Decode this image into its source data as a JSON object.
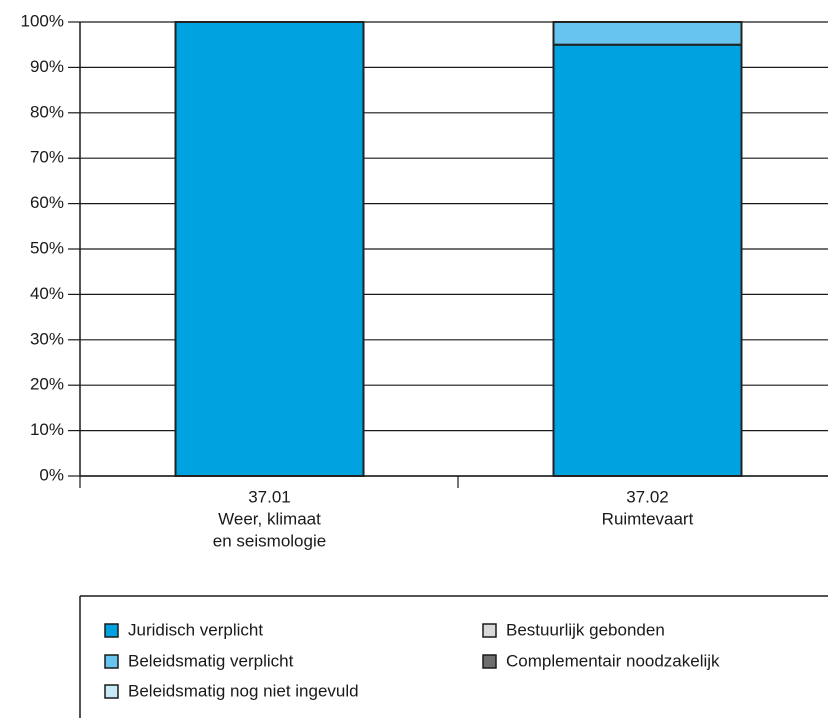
{
  "chart_data": {
    "type": "stacked_bar",
    "categories": [
      [
        "37.01",
        "Weer, klimaat",
        "en seismologie"
      ],
      [
        "37.02",
        "Ruimtevaart"
      ]
    ],
    "series": [
      {
        "name": "Juridisch verplicht",
        "color": "#00a3e0",
        "values": [
          100,
          95
        ]
      },
      {
        "name": "Beleidsmatig verplicht",
        "color": "#66c4ee",
        "values": [
          0,
          5
        ]
      },
      {
        "name": "Beleidsmatig nog niet ingevuld",
        "color": "#c7e9f8",
        "values": [
          0,
          0
        ]
      },
      {
        "name": "Bestuurlijk gebonden",
        "color": "#d9d9d9",
        "values": [
          0,
          0
        ]
      },
      {
        "name": "Complementair noodzakelijk",
        "color": "#6e6e6e",
        "values": [
          0,
          0
        ]
      }
    ],
    "ylim": [
      0,
      100
    ],
    "yticks": [
      {
        "value": 0,
        "label": "0%"
      },
      {
        "value": 10,
        "label": "10%"
      },
      {
        "value": 20,
        "label": "20%"
      },
      {
        "value": 30,
        "label": "30%"
      },
      {
        "value": 40,
        "label": "40%"
      },
      {
        "value": 50,
        "label": "50%"
      },
      {
        "value": 60,
        "label": "60%"
      },
      {
        "value": 70,
        "label": "70%"
      },
      {
        "value": 80,
        "label": "80%"
      },
      {
        "value": 90,
        "label": "90%"
      },
      {
        "value": 100,
        "label": "100%"
      }
    ],
    "grid": true
  }
}
